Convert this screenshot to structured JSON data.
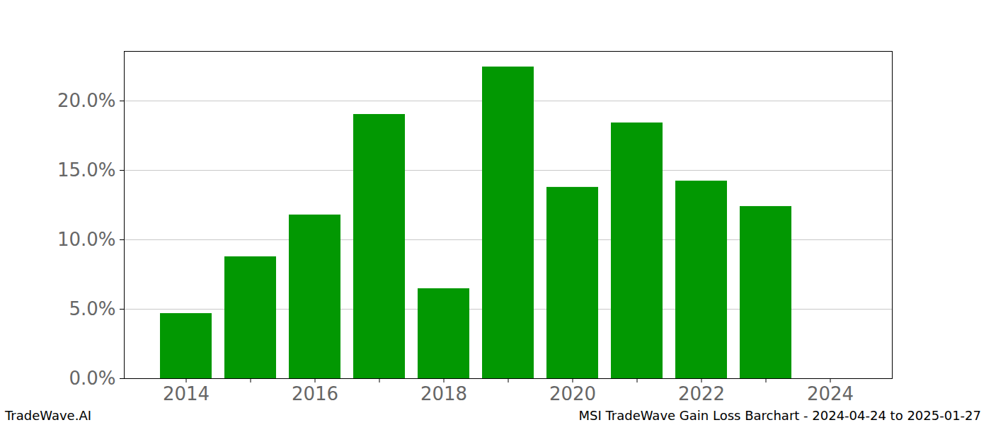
{
  "chart_data": {
    "type": "bar",
    "title": "MSI TradeWave Gain Loss Barchart - 2024-04-24 to 2025-01-27",
    "caption": "TradeWave.AI",
    "categories": [
      "2014",
      null,
      "2016",
      null,
      "2018",
      null,
      "2020",
      null,
      "2022",
      null,
      "2024"
    ],
    "values": [
      4.69,
      8.78,
      11.79,
      19.03,
      6.48,
      22.45,
      13.78,
      18.42,
      14.23,
      12.4,
      null
    ],
    "color": "#029802",
    "ylim": [
      0,
      23.57
    ],
    "yticks": [
      {
        "value": 0,
        "label": "0.0%"
      },
      {
        "value": 5,
        "label": "5.0%"
      },
      {
        "value": 10,
        "label": "10.0%"
      },
      {
        "value": 15,
        "label": "15.0%"
      },
      {
        "value": 20,
        "label": "20.0%"
      }
    ],
    "grid": true
  }
}
